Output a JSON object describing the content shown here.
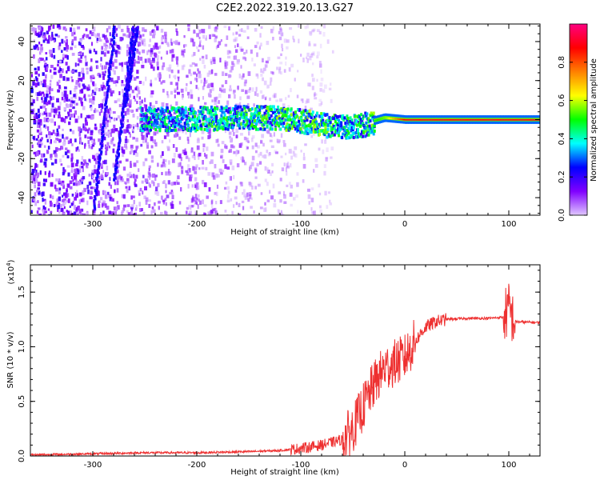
{
  "title": "C2E2.2022.319.20.13.G27",
  "colors": {
    "snr_line": "#ee3030",
    "spectrum_base": "#9b30ff"
  },
  "chart_data": [
    {
      "type": "heatmap",
      "xlabel": "Height of straight line (km)",
      "ylabel": "Frequency (Hz)",
      "xlim": [
        -360,
        130
      ],
      "ylim": [
        -49,
        49
      ],
      "x_ticks": [
        -300,
        -200,
        -100,
        0,
        100
      ],
      "x_tick_labels": [
        "-300",
        "-200",
        "-100",
        "0",
        "100"
      ],
      "y_ticks": [
        -40,
        -20,
        0,
        20,
        40
      ],
      "y_tick_labels": [
        "-40",
        "-20",
        "0",
        "20",
        "40"
      ],
      "colorbar": {
        "label": "Normalized spectral amplitude",
        "range": [
          0,
          1
        ],
        "ticks": [
          0.0,
          0.2,
          0.4,
          0.6,
          0.8
        ],
        "tick_labels": [
          "0.0",
          "0.2",
          "0.4",
          "0.6",
          "0.8"
        ],
        "stops": [
          "#e0c8ff",
          "#8000ff",
          "#0000ff",
          "#00ffff",
          "#00ff00",
          "#ffff00",
          "#ff8000",
          "#ff0000",
          "#ff0080"
        ]
      },
      "ridge": [
        {
          "x": -255,
          "y": 1,
          "v": 0.35
        },
        {
          "x": -200,
          "y": 1,
          "v": 0.4
        },
        {
          "x": -150,
          "y": 2,
          "v": 0.42
        },
        {
          "x": -110,
          "y": 1,
          "v": 0.45
        },
        {
          "x": -80,
          "y": -2,
          "v": 0.45
        },
        {
          "x": -60,
          "y": -3,
          "v": 0.4
        },
        {
          "x": -40,
          "y": -2,
          "v": 0.4
        },
        {
          "x": -20,
          "y": 1,
          "v": 0.55
        },
        {
          "x": 0,
          "y": 0,
          "v": 0.9
        },
        {
          "x": 100,
          "y": 0,
          "v": 0.9
        }
      ]
    },
    {
      "type": "line",
      "xlabel": "Height of straight line (km)",
      "ylabel": "SNR (10 * v/v)",
      "y_multiplier": "(x10",
      "y_multiplier_exp": "4",
      "y_multiplier_close": ")",
      "xlim": [
        -360,
        130
      ],
      "ylim": [
        0,
        1.75
      ],
      "x_ticks": [
        -300,
        -200,
        -100,
        0,
        100
      ],
      "x_tick_labels": [
        "-300",
        "-200",
        "-100",
        "0",
        "100"
      ],
      "y_ticks": [
        0.0,
        0.5,
        1.0,
        1.5
      ],
      "y_tick_labels": [
        "0.0",
        "0.5",
        "1.0",
        "1.5"
      ],
      "series": [
        {
          "x": [
            -360,
            -300,
            -250,
            -200,
            -150,
            -120,
            -100,
            -80,
            -60,
            -50,
            -40,
            -30,
            -20,
            -10,
            0,
            10,
            20,
            30,
            40,
            60,
            80,
            95,
            100,
            105,
            130
          ],
          "y": [
            0.01,
            0.02,
            0.03,
            0.03,
            0.04,
            0.05,
            0.07,
            0.1,
            0.15,
            0.25,
            0.45,
            0.65,
            0.8,
            0.85,
            0.9,
            1.05,
            1.18,
            1.23,
            1.25,
            1.26,
            1.26,
            1.27,
            1.35,
            1.23,
            1.22
          ]
        }
      ]
    }
  ]
}
